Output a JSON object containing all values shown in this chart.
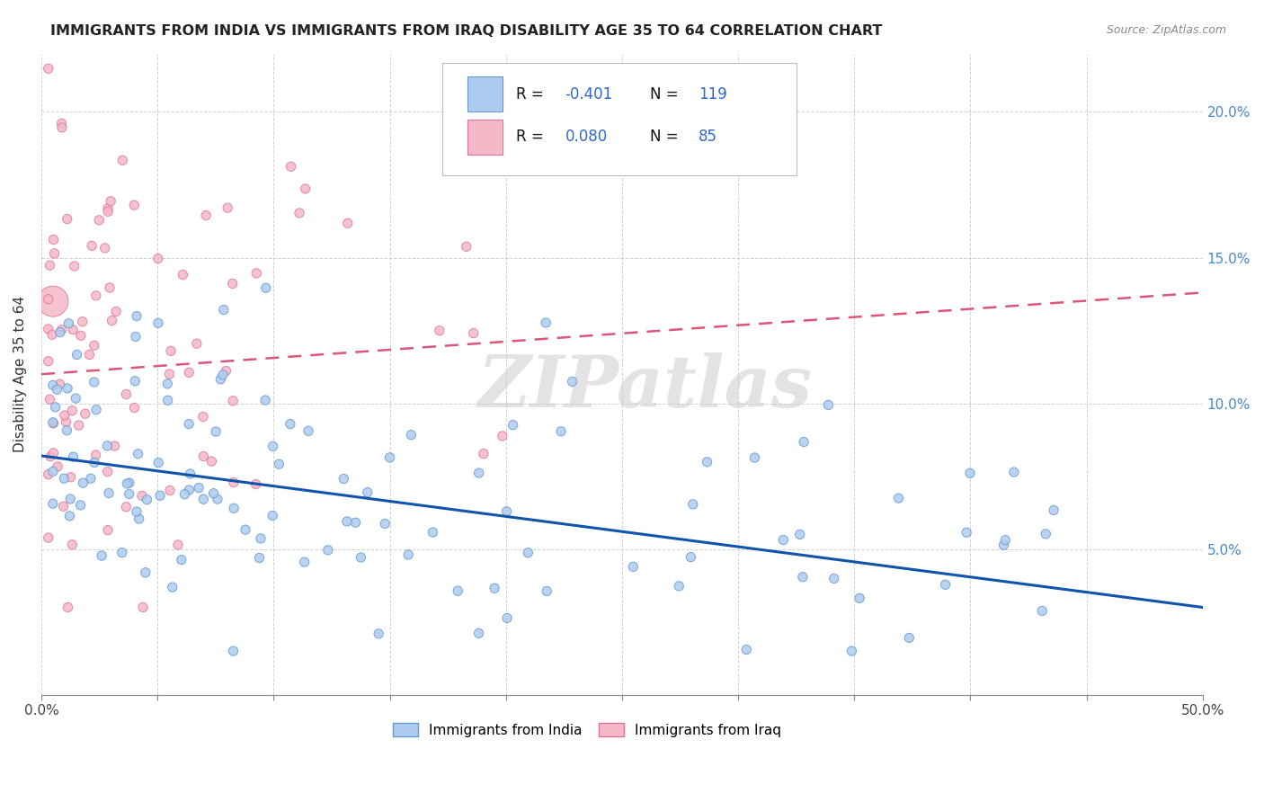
{
  "title": "IMMIGRANTS FROM INDIA VS IMMIGRANTS FROM IRAQ DISABILITY AGE 35 TO 64 CORRELATION CHART",
  "source": "Source: ZipAtlas.com",
  "ylabel": "Disability Age 35 to 64",
  "xlim": [
    0.0,
    0.5
  ],
  "ylim": [
    0.0,
    0.22
  ],
  "xticks": [
    0.0,
    0.05,
    0.1,
    0.15,
    0.2,
    0.25,
    0.3,
    0.35,
    0.4,
    0.45,
    0.5
  ],
  "xtick_labels": [
    "0.0%",
    "",
    "",
    "",
    "",
    "",
    "",
    "",
    "",
    "",
    "50.0%"
  ],
  "ytick_positions": [
    0.05,
    0.1,
    0.15,
    0.2
  ],
  "ytick_labels": [
    "5.0%",
    "10.0%",
    "15.0%",
    "20.0%"
  ],
  "india_color": "#aeccf0",
  "iraq_color": "#f5b8c8",
  "india_edge_color": "#6699cc",
  "iraq_edge_color": "#dd7799",
  "india_line_color": "#1155aa",
  "iraq_line_color": "#dd5577",
  "india_R": -0.401,
  "india_N": 119,
  "iraq_R": 0.08,
  "iraq_N": 85,
  "legend_label_india": "Immigrants from India",
  "legend_label_iraq": "Immigrants from Iraq",
  "watermark": "ZIPatlas",
  "india_line_x0": 0.0,
  "india_line_y0": 0.082,
  "india_line_x1": 0.5,
  "india_line_y1": 0.03,
  "iraq_line_x0": 0.0,
  "iraq_line_y0": 0.11,
  "iraq_line_x1": 0.5,
  "iraq_line_y1": 0.138
}
